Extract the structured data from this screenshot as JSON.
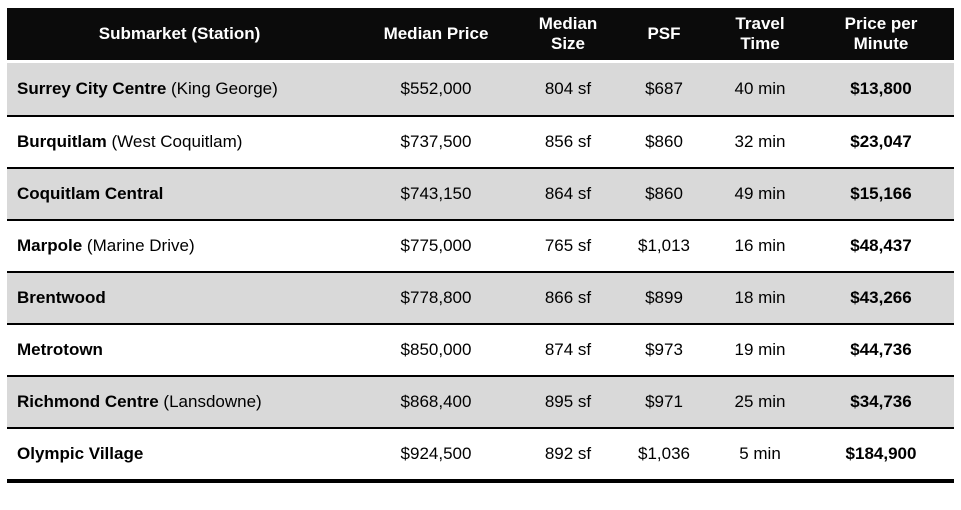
{
  "colors": {
    "header_bg": "#0b0b0b",
    "header_text": "#ffffff",
    "row_shaded": "#d9d9d9",
    "row_plain": "#ffffff",
    "border": "#000000"
  },
  "chart_data": {
    "type": "table",
    "columns": [
      "Submarket (Station)",
      "Median Price",
      "Median Size",
      "PSF",
      "Travel Time",
      "Price per Minute"
    ],
    "rows": [
      {
        "name": "Surrey City Centre",
        "station": "(King George)",
        "median_price": "$552,000",
        "median_size": "804 sf",
        "psf": "$687",
        "travel_time": "40 min",
        "price_per_minute": "$13,800"
      },
      {
        "name": "Burquitlam",
        "station": "(West Coquitlam)",
        "median_price": "$737,500",
        "median_size": "856 sf",
        "psf": "$860",
        "travel_time": "32 min",
        "price_per_minute": "$23,047"
      },
      {
        "name": "Coquitlam Central",
        "station": "",
        "median_price": "$743,150",
        "median_size": "864 sf",
        "psf": "$860",
        "travel_time": "49 min",
        "price_per_minute": "$15,166"
      },
      {
        "name": "Marpole",
        "station": "(Marine Drive)",
        "median_price": "$775,000",
        "median_size": "765 sf",
        "psf": "$1,013",
        "travel_time": "16 min",
        "price_per_minute": "$48,437"
      },
      {
        "name": "Brentwood",
        "station": "",
        "median_price": "$778,800",
        "median_size": "866 sf",
        "psf": "$899",
        "travel_time": "18 min",
        "price_per_minute": "$43,266"
      },
      {
        "name": "Metrotown",
        "station": "",
        "median_price": "$850,000",
        "median_size": "874 sf",
        "psf": "$973",
        "travel_time": "19 min",
        "price_per_minute": "$44,736"
      },
      {
        "name": "Richmond Centre",
        "station": "(Lansdowne)",
        "median_price": "$868,400",
        "median_size": "895 sf",
        "psf": "$971",
        "travel_time": "25 min",
        "price_per_minute": "$34,736"
      },
      {
        "name": "Olympic Village",
        "station": "",
        "median_price": "$924,500",
        "median_size": "892 sf",
        "psf": "$1,036",
        "travel_time": "5 min",
        "price_per_minute": "$184,900"
      }
    ]
  }
}
